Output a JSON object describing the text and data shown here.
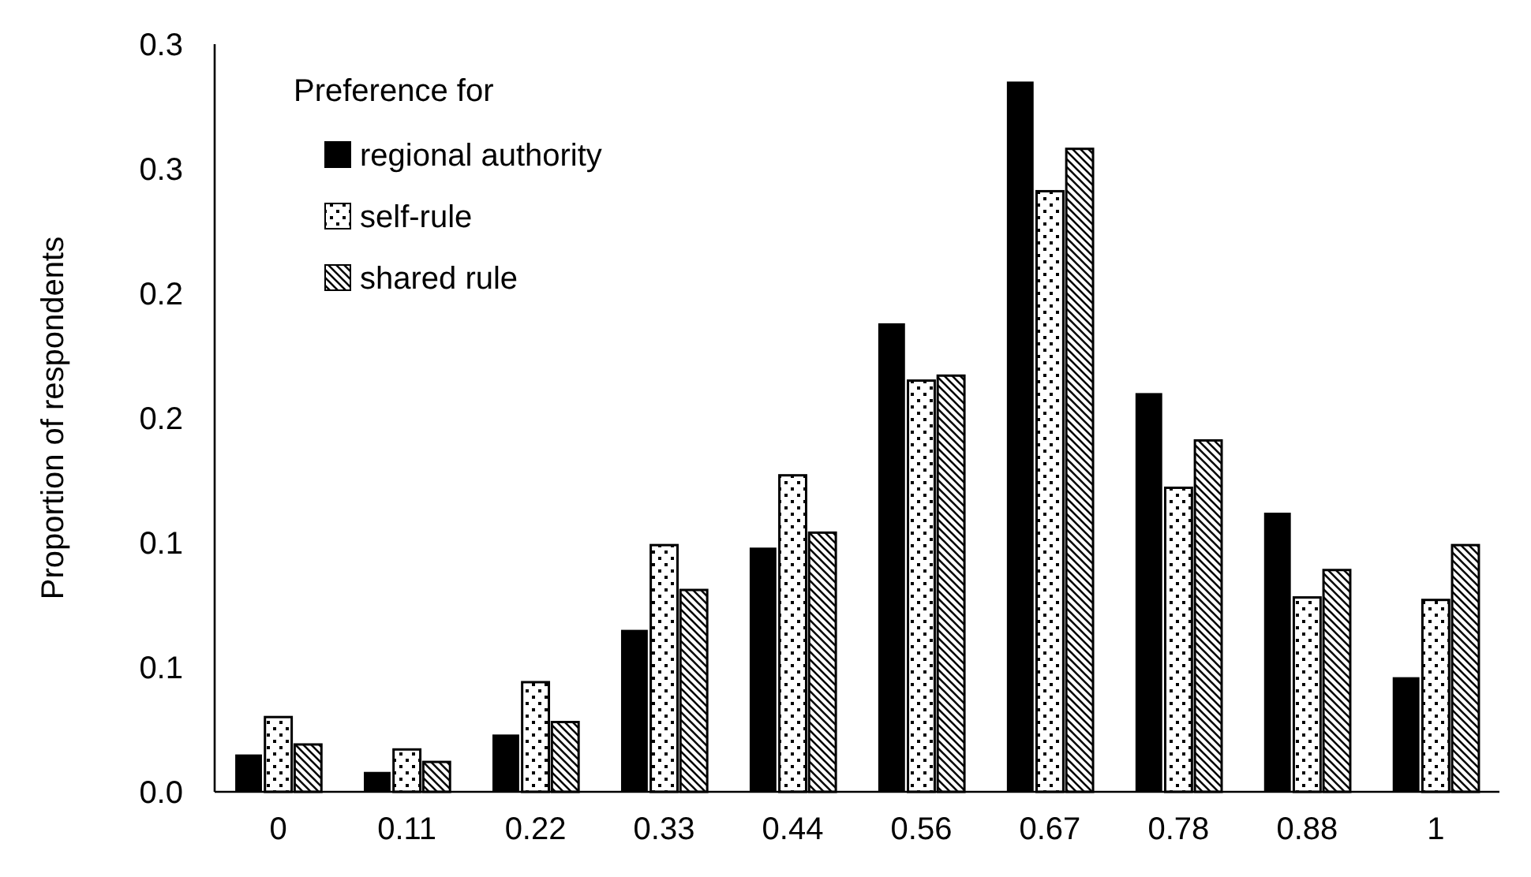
{
  "chart_data": {
    "type": "bar",
    "ylabel": "Proportion of respondents",
    "legend_title": "Preference for",
    "categories": [
      "0",
      "0.11",
      "0.22",
      "0.33",
      "0.44",
      "0.56",
      "0.67",
      "0.78",
      "0.88",
      "1"
    ],
    "series": [
      {
        "name": "regional authority",
        "color": "#000000",
        "values": [
          0.015,
          0.008,
          0.023,
          0.065,
          0.098,
          0.188,
          0.285,
          0.16,
          0.112,
          0.046
        ]
      },
      {
        "name": "self-rule",
        "color": "#000000",
        "values": [
          0.03,
          0.017,
          0.044,
          0.099,
          0.127,
          0.165,
          0.241,
          0.122,
          0.078,
          0.077
        ]
      },
      {
        "name": "shared rule",
        "color": "#000000",
        "values": [
          0.019,
          0.012,
          0.028,
          0.081,
          0.104,
          0.167,
          0.258,
          0.141,
          0.089,
          0.099
        ]
      }
    ],
    "ylim": [
      0,
      0.3
    ],
    "yticks": [
      {
        "value": 0,
        "label": "0.0"
      },
      {
        "value": 0.05,
        "label": "0.1"
      },
      {
        "value": 0.1,
        "label": "0.1"
      },
      {
        "value": 0.15,
        "label": "0.2"
      },
      {
        "value": 0.2,
        "label": "0.2"
      },
      {
        "value": 0.25,
        "label": "0.3"
      },
      {
        "value": 0.3,
        "label": "0.3"
      }
    ],
    "grid": false,
    "legend": "top left"
  }
}
